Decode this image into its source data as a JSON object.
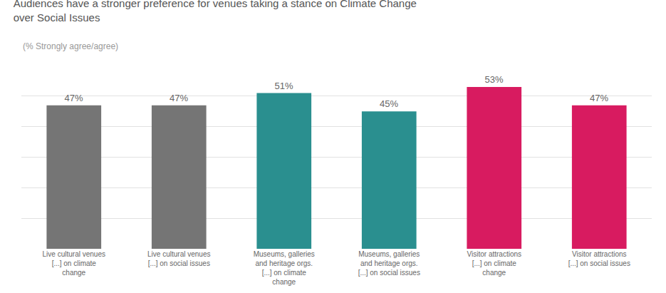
{
  "chart_data": {
    "type": "bar",
    "title": "Audiences have a stronger preference for venues taking a stance on Climate Change\nover Social Issues",
    "subtitle": "(% Strongly agree/agree)",
    "categories": [
      "Live cultural venues\n[...] on climate\nchange",
      "Live cultural venues\n[...] on social issues",
      "Museums, galleries\nand heritage orgs.\n[...] on climate\nchange",
      "Museums, galleries\nand heritage orgs.\n[...] on social issues",
      "Visitor attractions\n[...] on climate\nchange",
      "Visitor attractions\n[...] on social issues"
    ],
    "values": [
      47,
      47,
      51,
      45,
      53,
      47
    ],
    "value_labels": [
      "47%",
      "47%",
      "51%",
      "45%",
      "53%",
      "47%"
    ],
    "colors": [
      "#757575",
      "#757575",
      "#2a8f8f",
      "#2a8f8f",
      "#d81b60",
      "#d81b60"
    ],
    "ylim": [
      0,
      60
    ],
    "yticks": [
      0,
      10,
      20,
      30,
      40,
      50,
      60
    ],
    "grid": true,
    "data_labels": true,
    "tick_labels": "x"
  }
}
